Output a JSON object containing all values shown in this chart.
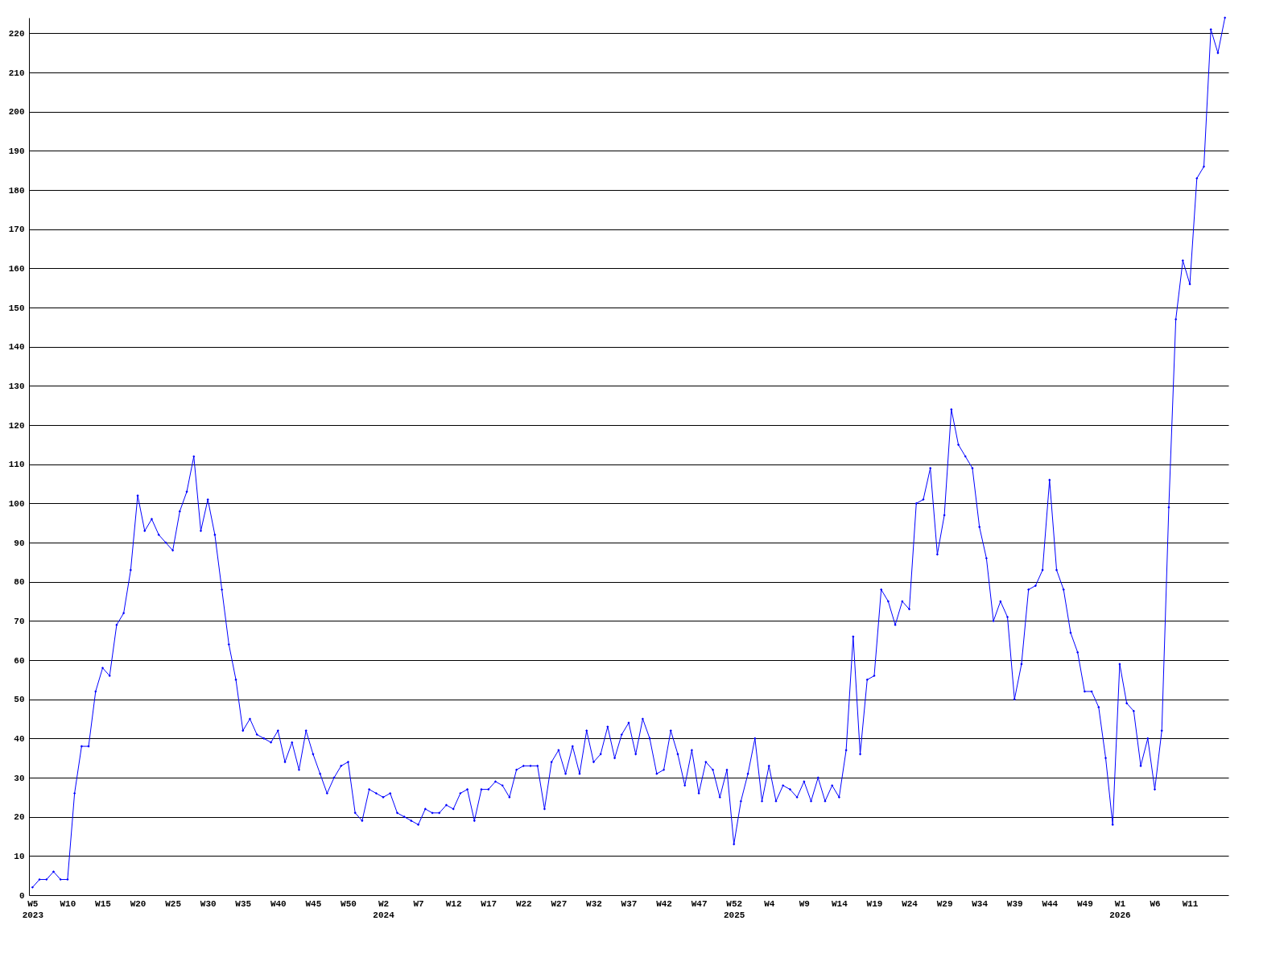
{
  "chart_data": {
    "type": "line",
    "categories": [
      "W5\n2023",
      null,
      null,
      null,
      null,
      "W10",
      null,
      null,
      null,
      null,
      "W15",
      null,
      null,
      null,
      null,
      "W20",
      null,
      null,
      null,
      null,
      "W25",
      null,
      null,
      null,
      null,
      "W30",
      null,
      null,
      null,
      null,
      "W35",
      null,
      null,
      null,
      null,
      "W40",
      null,
      null,
      null,
      null,
      "W45",
      null,
      null,
      null,
      null,
      "W50",
      null,
      null,
      null,
      null,
      "W2\n2024",
      null,
      null,
      null,
      null,
      "W7",
      null,
      null,
      null,
      null,
      "W12",
      null,
      null,
      null,
      null,
      "W17",
      null,
      null,
      null,
      null,
      "W22",
      null,
      null,
      null,
      null,
      "W27",
      null,
      null,
      null,
      null,
      "W32",
      null,
      null,
      null,
      null,
      "W37",
      null,
      null,
      null,
      null,
      "W42",
      null,
      null,
      null,
      null,
      "W47",
      null,
      null,
      null,
      null,
      "W52\n2025",
      null,
      null,
      null,
      null,
      "W4",
      null,
      null,
      null,
      null,
      "W9",
      null,
      null,
      null,
      null,
      "W14",
      null,
      null,
      null,
      null,
      "W19",
      null,
      null,
      null,
      null,
      "W24",
      null,
      null,
      null,
      null,
      "W29",
      null,
      null,
      null,
      null,
      "W34",
      null,
      null,
      null,
      null,
      "W39",
      null,
      null,
      null,
      null,
      "W44",
      null,
      null,
      null,
      null,
      "W49",
      null,
      null,
      null,
      null,
      "W1\n2026",
      null,
      null,
      null,
      null,
      "W6",
      null,
      null,
      null,
      null,
      "W11",
      null,
      null,
      null,
      null,
      null
    ],
    "series": [
      {
        "color": "#0000ff",
        "values": [
          2,
          4,
          4,
          6,
          4,
          4,
          26,
          38,
          38,
          52,
          58,
          56,
          69,
          72,
          83,
          102,
          93,
          96,
          92,
          90,
          88,
          98,
          103,
          112,
          93,
          101,
          92,
          78,
          64,
          55,
          42,
          45,
          41,
          40,
          39,
          42,
          34,
          39,
          32,
          42,
          36,
          31,
          26,
          30,
          33,
          34,
          21,
          19,
          27,
          26,
          25,
          26,
          21,
          20,
          19,
          18,
          22,
          21,
          21,
          23,
          22,
          26,
          27,
          19,
          27,
          27,
          29,
          28,
          25,
          32,
          33,
          33,
          33,
          22,
          34,
          37,
          31,
          38,
          31,
          42,
          34,
          36,
          43,
          35,
          41,
          44,
          36,
          45,
          40,
          31,
          32,
          42,
          36,
          28,
          37,
          26,
          34,
          32,
          25,
          32,
          13,
          24,
          31,
          40,
          24,
          33,
          24,
          28,
          27,
          25,
          29,
          24,
          30,
          24,
          28,
          25,
          37,
          66,
          36,
          55,
          56,
          78,
          75,
          69,
          75,
          73,
          100,
          101,
          109,
          87,
          97,
          124,
          115,
          112,
          109,
          94,
          86,
          70,
          75,
          71,
          50,
          59,
          78,
          79,
          83,
          106,
          83,
          78,
          67,
          62,
          52,
          52,
          48,
          35,
          18,
          59,
          49,
          47,
          33,
          40,
          27,
          42,
          99,
          147,
          162,
          156,
          183,
          186,
          221,
          215,
          224
        ]
      }
    ],
    "ylim": [
      0,
      224
    ],
    "yticks": [
      0,
      10,
      20,
      30,
      40,
      50,
      60,
      70,
      80,
      90,
      100,
      110,
      120,
      130,
      140,
      150,
      160,
      170,
      180,
      190,
      200,
      210,
      220
    ],
    "grid": "y",
    "marker": "diamond",
    "line_style": "solid"
  }
}
